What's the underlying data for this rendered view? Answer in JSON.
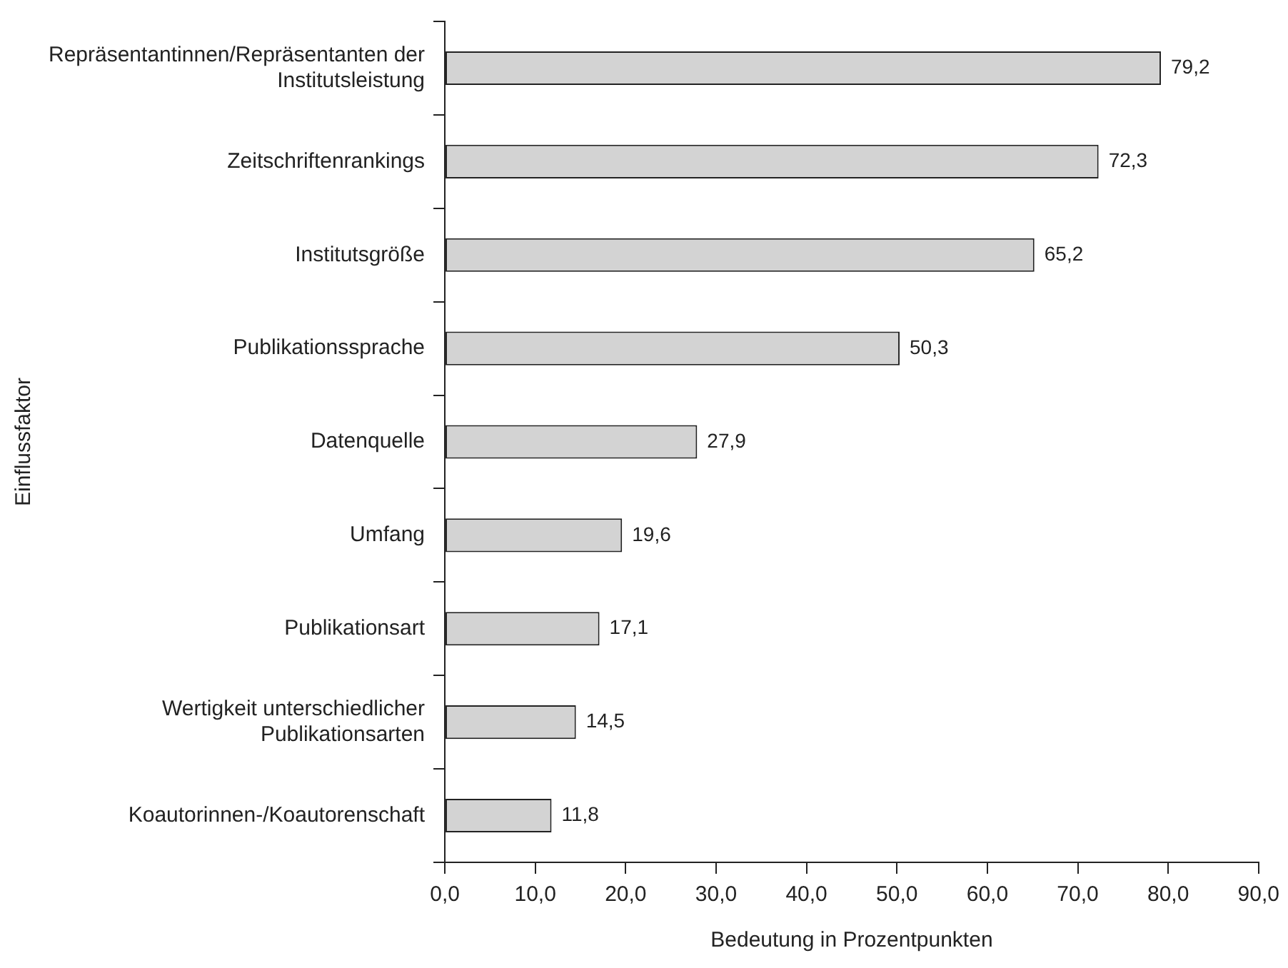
{
  "chart_data": {
    "type": "bar",
    "orientation": "horizontal",
    "xlabel": "Bedeutung in Prozentpunkten",
    "ylabel": "Einflussfaktor",
    "categories": [
      "Repräsentantinnen/Repräsentanten der Institutsleistung",
      "Zeitschriftenrankings",
      "Institutsgröße",
      "Publikationssprache",
      "Datenquelle",
      "Umfang",
      "Publikationsart",
      "Wertigkeit unterschiedlicher Publikationsarten",
      "Koautorinnen-/Koautorenschaft"
    ],
    "values": [
      79.2,
      72.3,
      65.2,
      50.3,
      27.9,
      19.6,
      17.1,
      14.5,
      11.8
    ],
    "value_labels": [
      "79,2",
      "72,3",
      "65,2",
      "50,3",
      "27,9",
      "19,6",
      "17,1",
      "14,5",
      "11,8"
    ],
    "color": "#d3d3d3",
    "xlim": [
      0,
      90
    ],
    "xticks": [
      {
        "value": 0,
        "label": "0,0"
      },
      {
        "value": 10,
        "label": "10,0"
      },
      {
        "value": 20,
        "label": "20,0"
      },
      {
        "value": 30,
        "label": "30,0"
      },
      {
        "value": 40,
        "label": "40,0"
      },
      {
        "value": 50,
        "label": "50,0"
      },
      {
        "value": 60,
        "label": "60,0"
      },
      {
        "value": 70,
        "label": "70,0"
      },
      {
        "value": 80,
        "label": "80,0"
      },
      {
        "value": 90,
        "label": "90,0"
      }
    ],
    "grid": false,
    "legend": false
  }
}
